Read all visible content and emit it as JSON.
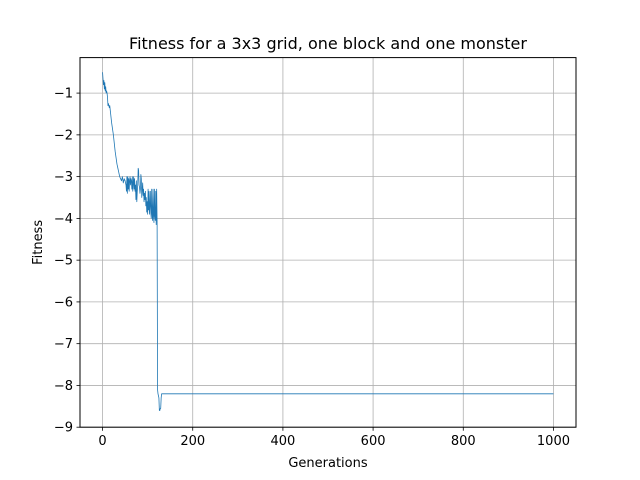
{
  "chart_data": {
    "type": "line",
    "title": "Fitness for a 3x3 grid, one block and one monster",
    "xlabel": "Generations",
    "ylabel": "Fitness",
    "xlim": [
      -50,
      1050
    ],
    "ylim": [
      -9,
      -0.15
    ],
    "xticks": [
      0,
      200,
      400,
      600,
      800,
      1000
    ],
    "yticks": [
      -1,
      -2,
      -3,
      -4,
      -5,
      -6,
      -7,
      -8,
      -9
    ],
    "grid": true,
    "legend": "none",
    "series": [
      {
        "color": "#1f77b4",
        "x": [
          0,
          1,
          2,
          3,
          4,
          5,
          6,
          7,
          8,
          9,
          10,
          11,
          12,
          13,
          14,
          15,
          16,
          18,
          20,
          22,
          24,
          26,
          28,
          30,
          32,
          34,
          36,
          38,
          40,
          42,
          44,
          46,
          48,
          50,
          52,
          53,
          54,
          55,
          56,
          57,
          58,
          59,
          60,
          61,
          62,
          63,
          64,
          65,
          66,
          67,
          68,
          69,
          70,
          71,
          72,
          73,
          74,
          75,
          76,
          77,
          78,
          79,
          80,
          81,
          82,
          83,
          84,
          85,
          86,
          87,
          88,
          89,
          90,
          91,
          92,
          93,
          94,
          95,
          96,
          97,
          98,
          99,
          100,
          101,
          102,
          103,
          104,
          105,
          106,
          107,
          108,
          109,
          110,
          111,
          112,
          113,
          114,
          115,
          116,
          117,
          118,
          119,
          120,
          121,
          122,
          123,
          124,
          125,
          126,
          127,
          128,
          129,
          130,
          131,
          132,
          1000
        ],
        "values": [
          -0.5,
          -0.65,
          -0.8,
          -0.7,
          -0.9,
          -0.75,
          -0.95,
          -0.85,
          -1.0,
          -0.95,
          -1.0,
          -1.1,
          -1.3,
          -1.25,
          -1.3,
          -1.35,
          -1.3,
          -1.5,
          -1.7,
          -1.85,
          -2.0,
          -2.2,
          -2.4,
          -2.55,
          -2.7,
          -2.8,
          -2.9,
          -3.0,
          -3.05,
          -3.1,
          -3.0,
          -3.15,
          -3.05,
          -3.1,
          -3.2,
          -3.35,
          -3.0,
          -3.4,
          -3.0,
          -3.3,
          -3.05,
          -3.35,
          -3.1,
          -3.0,
          -3.2,
          -3.05,
          -3.1,
          -3.3,
          -3.0,
          -3.35,
          -3.15,
          -3.0,
          -3.3,
          -3.05,
          -3.35,
          -3.2,
          -3.55,
          -3.1,
          -3.6,
          -3.35,
          -3.2,
          -2.8,
          -2.85,
          -3.2,
          -3.25,
          -3.4,
          -3.3,
          -2.95,
          -3.05,
          -3.5,
          -3.3,
          -3.15,
          -3.45,
          -3.3,
          -3.6,
          -3.4,
          -3.55,
          -3.35,
          -3.7,
          -3.5,
          -3.85,
          -3.6,
          -3.9,
          -3.3,
          -3.8,
          -3.35,
          -3.9,
          -3.7,
          -3.35,
          -3.85,
          -4.0,
          -3.3,
          -3.9,
          -4.05,
          -3.3,
          -3.95,
          -4.1,
          -3.3,
          -3.95,
          -4.05,
          -3.35,
          -4.15,
          -3.3,
          -4.1,
          -8.1,
          -8.2,
          -8.25,
          -8.3,
          -8.6,
          -8.6,
          -8.55,
          -8.55,
          -8.3,
          -8.2,
          -8.2,
          -8.2
        ]
      }
    ]
  }
}
